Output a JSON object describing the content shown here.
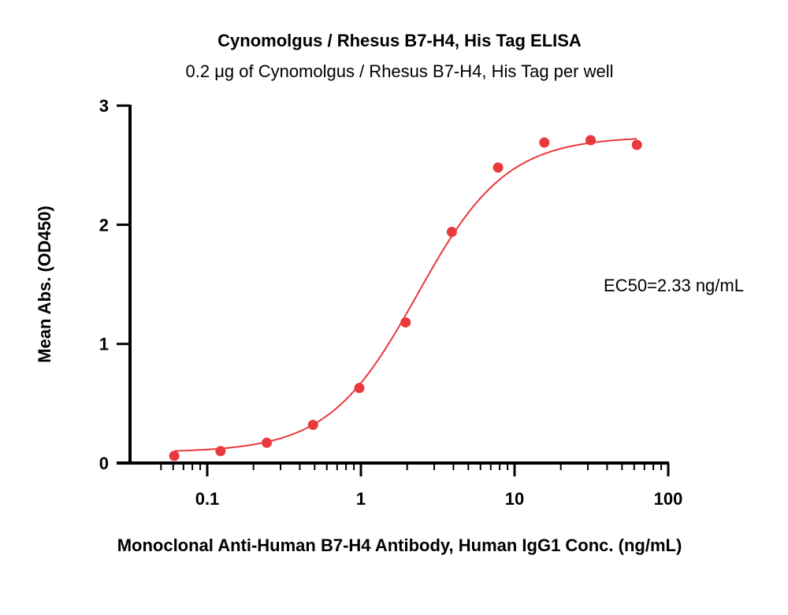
{
  "chart_data": {
    "type": "scatter",
    "title": "Cynomolgus / Rhesus B7-H4, His Tag ELISA",
    "subtitle": "0.2 μg of Cynomolgus / Rhesus B7-H4, His Tag per well",
    "xlabel": "Monoclonal Anti-Human B7-H4 Antibody, Human IgG1 Conc. (ng/mL)",
    "ylabel": "Mean Abs. (OD450)",
    "x_scale": "log",
    "xlim": [
      0.04,
      100
    ],
    "ylim": [
      0,
      3
    ],
    "x_ticks": [
      0.1,
      1,
      10,
      100
    ],
    "x_tick_labels": [
      "0.1",
      "1",
      "10",
      "100"
    ],
    "y_ticks": [
      0,
      1,
      2,
      3
    ],
    "y_tick_labels": [
      "0",
      "1",
      "2",
      "3"
    ],
    "grid": false,
    "color": "#e8393c",
    "annotation": "EC50=2.33 ng/mL",
    "series": [
      {
        "x": [
          0.061,
          0.122,
          0.244,
          0.488,
          0.977,
          1.953,
          3.906,
          7.813,
          15.625,
          31.25,
          62.5
        ],
        "y": [
          0.06,
          0.1,
          0.17,
          0.32,
          0.63,
          1.18,
          1.94,
          2.48,
          2.69,
          2.71,
          2.67
        ]
      }
    ],
    "fit_curve": {
      "model": "4PL",
      "bottom": 0.09,
      "top": 2.74,
      "ec50": 2.33,
      "hill": 1.5
    }
  }
}
